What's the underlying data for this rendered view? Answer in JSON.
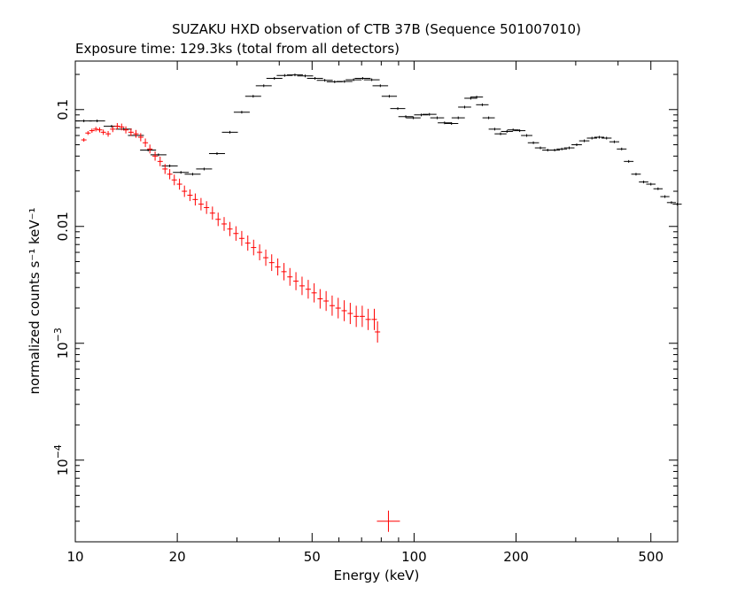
{
  "chart_data": {
    "type": "scatter",
    "title": "SUZAKU HXD observation of CTB 37B (Sequence 501007010)",
    "subtitle": "Exposure time: 129.3ks (total from all detectors)",
    "xlabel": "Energy (keV)",
    "ylabel": "normalized counts s⁻¹ keV⁻¹",
    "xscale": "log",
    "yscale": "log",
    "xlim": [
      10,
      600
    ],
    "ylim": [
      2e-05,
      0.26
    ],
    "grid": false,
    "x_ticks": [
      {
        "v": 10,
        "label": "10"
      },
      {
        "v": 20,
        "label": "20"
      },
      {
        "v": 50,
        "label": "50"
      },
      {
        "v": 100,
        "label": "100"
      },
      {
        "v": 200,
        "label": "200"
      },
      {
        "v": 500,
        "label": "500"
      }
    ],
    "y_ticks": [
      {
        "v": 0.1,
        "label": "0.1"
      },
      {
        "v": 0.01,
        "label": "0.01"
      }
    ],
    "y_ticks_sup": [
      {
        "v": 0.001,
        "base": "10",
        "exp": "−3"
      },
      {
        "v": 0.0001,
        "base": "10",
        "exp": "−4"
      }
    ],
    "series": [
      {
        "color": "#000000",
        "points": [
          [
            10.6,
            0.08
          ],
          [
            11.6,
            0.08
          ],
          [
            12.8,
            0.072
          ],
          [
            13.9,
            0.068
          ],
          [
            15.1,
            0.06
          ],
          [
            16.4,
            0.045
          ],
          [
            17.6,
            0.041
          ],
          [
            19.0,
            0.033
          ],
          [
            20.5,
            0.029
          ],
          [
            22.2,
            0.028
          ],
          [
            24.0,
            0.031
          ],
          [
            26.2,
            0.042
          ],
          [
            28.6,
            0.064
          ],
          [
            31.0,
            0.095
          ],
          [
            33.5,
            0.13
          ],
          [
            36.0,
            0.16
          ],
          [
            38.7,
            0.185
          ],
          [
            41.5,
            0.196
          ],
          [
            44.5,
            0.198
          ],
          [
            47.7,
            0.194
          ],
          [
            51.0,
            0.185
          ],
          [
            54.5,
            0.178
          ],
          [
            58.3,
            0.173
          ],
          [
            62.3,
            0.174
          ],
          [
            66.3,
            0.18
          ],
          [
            70.5,
            0.185
          ],
          [
            75.0,
            0.18
          ],
          [
            79.5,
            0.16
          ],
          [
            84.5,
            0.13
          ],
          [
            89.5,
            0.102
          ],
          [
            94.5,
            0.087
          ],
          [
            99.5,
            0.085
          ],
          [
            105,
            0.09
          ],
          [
            111,
            0.091
          ],
          [
            117,
            0.085
          ],
          [
            123,
            0.077
          ],
          [
            129,
            0.076
          ],
          [
            135,
            0.085
          ],
          [
            141,
            0.105
          ],
          [
            147,
            0.125
          ],
          [
            153,
            0.128
          ],
          [
            159,
            0.11
          ],
          [
            166,
            0.085
          ],
          [
            173,
            0.068
          ],
          [
            180,
            0.062
          ],
          [
            188,
            0.065
          ],
          [
            196,
            0.067
          ],
          [
            205,
            0.066
          ],
          [
            215,
            0.06
          ],
          [
            225,
            0.052
          ],
          [
            236,
            0.047
          ],
          [
            248,
            0.045
          ],
          [
            260,
            0.045
          ],
          [
            273,
            0.046
          ],
          [
            287,
            0.047
          ],
          [
            302,
            0.05
          ],
          [
            318,
            0.054
          ],
          [
            335,
            0.057
          ],
          [
            352,
            0.058
          ],
          [
            370,
            0.057
          ],
          [
            390,
            0.053
          ],
          [
            410,
            0.046
          ],
          [
            430,
            0.036
          ],
          [
            452,
            0.028
          ],
          [
            476,
            0.024
          ],
          [
            500,
            0.023
          ],
          [
            525,
            0.021
          ],
          [
            550,
            0.018
          ],
          [
            575,
            0.016
          ],
          [
            598,
            0.0155
          ]
        ]
      },
      {
        "color": "#ff0000",
        "points": [
          [
            10.6,
            0.055
          ],
          [
            10.9,
            0.063
          ],
          [
            11.2,
            0.066
          ],
          [
            11.5,
            0.068
          ],
          [
            11.8,
            0.067
          ],
          [
            12.1,
            0.064
          ],
          [
            12.5,
            0.062
          ],
          [
            12.9,
            0.068
          ],
          [
            13.3,
            0.072
          ],
          [
            13.7,
            0.071
          ],
          [
            14.1,
            0.067
          ],
          [
            14.6,
            0.064
          ],
          [
            15.1,
            0.062
          ],
          [
            15.6,
            0.058
          ],
          [
            16.1,
            0.052
          ],
          [
            16.6,
            0.046
          ],
          [
            17.2,
            0.04
          ],
          [
            17.8,
            0.036
          ],
          [
            18.4,
            0.031
          ],
          [
            19.0,
            0.028
          ],
          [
            19.6,
            0.025
          ],
          [
            20.3,
            0.023
          ],
          [
            21.0,
            0.02
          ],
          [
            21.8,
            0.0185
          ],
          [
            22.6,
            0.017
          ],
          [
            23.5,
            0.0155
          ],
          [
            24.4,
            0.0145
          ],
          [
            25.4,
            0.013
          ],
          [
            26.4,
            0.0115
          ],
          [
            27.5,
            0.0105
          ],
          [
            28.6,
            0.0095
          ],
          [
            29.8,
            0.0087
          ],
          [
            31.0,
            0.0079
          ],
          [
            32.3,
            0.0072
          ],
          [
            33.6,
            0.0066
          ],
          [
            35.0,
            0.006
          ],
          [
            36.5,
            0.0054
          ],
          [
            38.0,
            0.0049
          ],
          [
            39.6,
            0.0045
          ],
          [
            41.3,
            0.0041
          ],
          [
            43.0,
            0.0037
          ],
          [
            44.8,
            0.0034
          ],
          [
            46.7,
            0.0031
          ],
          [
            48.7,
            0.0029
          ],
          [
            50.7,
            0.0027
          ],
          [
            52.8,
            0.0024
          ],
          [
            55.0,
            0.0023
          ],
          [
            57.3,
            0.0021
          ],
          [
            59.7,
            0.002
          ],
          [
            62.2,
            0.0019
          ],
          [
            64.8,
            0.0018
          ],
          [
            67.5,
            0.0017
          ],
          [
            70.3,
            0.0017
          ],
          [
            73.2,
            0.0016
          ],
          [
            76.3,
            0.0016
          ],
          [
            78.0,
            0.00125
          ]
        ]
      }
    ],
    "marker": {
      "x": 84.0,
      "y": 3e-05,
      "color": "#ff0000"
    }
  }
}
